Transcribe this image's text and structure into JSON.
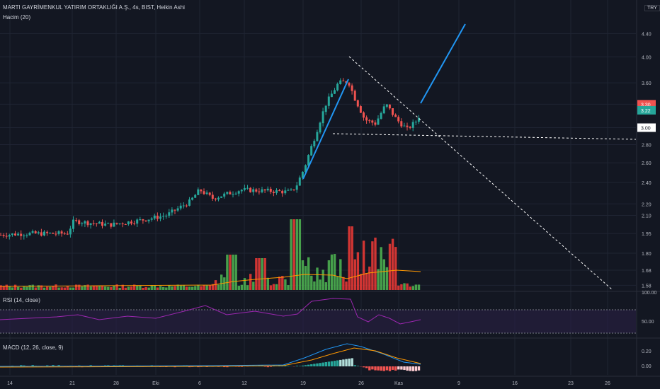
{
  "header": {
    "title": "MARTI GAYRİMENKUL YATIRIM ORTAKLIĞI A.Ş., 4s, BIST, Heikin Ashi",
    "volume_label": "Hacim (20)",
    "currency": "TRY",
    "rsi_label": "RSI (14, close)",
    "macd_label": "MACD (12, 26, close, 9)"
  },
  "colors": {
    "background": "#131722",
    "grid": "#1f2433",
    "up": "#26a69a",
    "down": "#ef5350",
    "vol_up": "#4caf50",
    "vol_down": "#e53935",
    "trend": "#2196f3",
    "rsi": "#9c27b0",
    "macd": "#2196f3",
    "signal": "#ff9800"
  },
  "chart_data": [
    {
      "type": "candlestick",
      "name": "price",
      "y_axis_ticks": [
        "4.40",
        "4.00",
        "3.60",
        "3.30",
        "3.00",
        "2.80",
        "2.60",
        "2.40",
        "2.20",
        "2.10",
        "1.95",
        "1.80",
        "1.68",
        "1.58"
      ],
      "scale": "log",
      "price_badges": [
        "3.30",
        "3.22",
        "3.00"
      ],
      "x_axis_ticks": [
        "14",
        "21",
        "28",
        "Eki",
        "6",
        "12",
        "19",
        "26",
        "Kas",
        "9",
        "16",
        "23",
        "26"
      ],
      "ohlc_anchors": [
        {
          "x": "Sep 14",
          "close": 1.94
        },
        {
          "x": "Sep 21",
          "close": 1.97
        },
        {
          "x": "Sep 28",
          "close": 2.05
        },
        {
          "x": "Eki",
          "close": 2.1
        },
        {
          "x": "Oct 6",
          "close": 2.3
        },
        {
          "x": "Oct 12",
          "close": 2.32
        },
        {
          "x": "Oct 19",
          "close": 2.42
        },
        {
          "x": "Oct 24",
          "close": 3.6
        },
        {
          "x": "Oct 26",
          "close": 3.1
        },
        {
          "x": "Kas",
          "close": 3.0
        },
        {
          "x": "Kas 3",
          "close": 3.22
        }
      ],
      "annotations": [
        {
          "kind": "trendline",
          "color": "blue",
          "from": {
            "x": "Oct 19",
            "y": 2.42
          },
          "to": {
            "x": "Oct 24",
            "y": 3.62
          }
        },
        {
          "kind": "trendline",
          "color": "blue",
          "from": {
            "x": "Kas 3",
            "y": 3.25
          },
          "to": {
            "x": "Kas 9",
            "y": 4.45
          }
        },
        {
          "kind": "dashed",
          "from": {
            "x": "Oct 24",
            "y": 3.95
          },
          "to": {
            "x": "Nov 28",
            "y": 1.58
          }
        },
        {
          "kind": "dashed",
          "from": {
            "x": "Oct 19",
            "y": 2.88
          },
          "to": {
            "x": "Nov 30",
            "y": 2.85
          }
        }
      ]
    },
    {
      "type": "bar",
      "name": "volume",
      "values_note": "relative heights, 0-1",
      "ma_visible": true
    },
    {
      "type": "line",
      "name": "rsi",
      "y_axis_ticks": [
        "100.00",
        "50.00"
      ]
    },
    {
      "type": "line",
      "name": "macd",
      "y_axis_ticks": [
        "0.20",
        "0.00"
      ]
    }
  ]
}
